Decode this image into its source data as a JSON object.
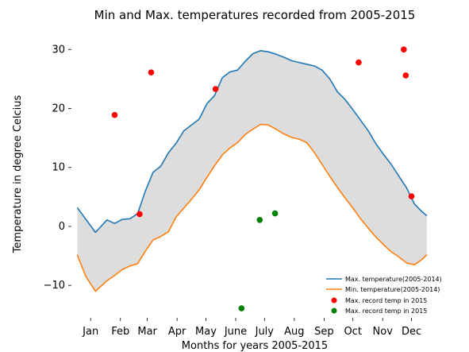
{
  "chart_data": {
    "type": "line",
    "title": "Min and Max. temperatures recorded from 2005-2015",
    "xlabel": "Months for years 2005-2015",
    "ylabel": "Temperature in degree Celcius",
    "xlim": [
      -5,
      375
    ],
    "ylim": [
      -15.5,
      33
    ],
    "months": [
      {
        "label": "Jan",
        "day": 15
      },
      {
        "label": "Feb",
        "day": 46
      },
      {
        "label": "Mar",
        "day": 74
      },
      {
        "label": "Apr",
        "day": 105
      },
      {
        "label": "May",
        "day": 135
      },
      {
        "label": "June",
        "day": 166
      },
      {
        "label": "July",
        "day": 196
      },
      {
        "label": "Aug",
        "day": 227
      },
      {
        "label": "Sep",
        "day": 258
      },
      {
        "label": "Oct",
        "day": 288
      },
      {
        "label": "Nov",
        "day": 319
      },
      {
        "label": "Dec",
        "day": 349
      }
    ],
    "yticks": [
      -10,
      0,
      10,
      20,
      30
    ],
    "series": [
      {
        "name": "Max. temperature(2005-2014)",
        "color": "#1f77b4",
        "x": [
          1,
          10,
          20,
          32,
          40,
          48,
          56,
          64,
          72,
          80,
          88,
          96,
          104,
          112,
          120,
          128,
          136,
          144,
          152,
          160,
          168,
          176,
          184,
          192,
          200,
          208,
          216,
          224,
          232,
          240,
          248,
          256,
          264,
          272,
          280,
          288,
          296,
          304,
          312,
          320,
          328,
          336,
          344,
          352,
          360,
          365
        ],
        "y": [
          3.2,
          1.2,
          -1.0,
          1.1,
          0.5,
          1.2,
          1.3,
          2.2,
          6.0,
          9.2,
          10.2,
          12.5,
          14.1,
          16.2,
          17.2,
          18.2,
          20.8,
          22.2,
          25.2,
          26.2,
          26.5,
          28.0,
          29.3,
          29.8,
          29.6,
          29.2,
          28.7,
          28.1,
          27.8,
          27.5,
          27.2,
          26.5,
          25.0,
          22.8,
          21.5,
          19.8,
          18.0,
          16.2,
          14.0,
          12.2,
          10.5,
          8.5,
          6.5,
          3.8,
          2.5,
          1.8
        ]
      },
      {
        "name": "Min. temperature(2005-2014)",
        "color": "#ff7f0e",
        "x": [
          1,
          10,
          20,
          32,
          40,
          48,
          56,
          64,
          72,
          80,
          88,
          96,
          104,
          112,
          120,
          128,
          136,
          144,
          152,
          160,
          168,
          176,
          184,
          192,
          200,
          208,
          216,
          224,
          232,
          240,
          248,
          256,
          264,
          272,
          280,
          288,
          296,
          304,
          312,
          320,
          328,
          336,
          344,
          352,
          360,
          365
        ],
        "y": [
          -4.8,
          -8.5,
          -11.0,
          -9.2,
          -8.3,
          -7.3,
          -6.7,
          -6.3,
          -4.2,
          -2.3,
          -1.7,
          -0.9,
          1.6,
          3.1,
          4.6,
          6.2,
          8.3,
          10.3,
          12.1,
          13.3,
          14.2,
          15.6,
          16.5,
          17.3,
          17.2,
          16.5,
          15.7,
          15.1,
          14.8,
          14.2,
          12.5,
          10.5,
          8.5,
          6.6,
          4.8,
          3.1,
          1.3,
          -0.3,
          -1.8,
          -3.1,
          -4.3,
          -5.2,
          -6.2,
          -6.5,
          -5.6,
          -4.8
        ]
      }
    ],
    "scatter": [
      {
        "name": "Max. record temp in 2015",
        "color": "#ff0000",
        "points": [
          [
            40,
            18.9
          ],
          [
            66,
            2.1
          ],
          [
            78,
            26.1
          ],
          [
            145,
            23.3
          ],
          [
            294,
            27.8
          ],
          [
            341,
            30.0
          ],
          [
            343,
            25.6
          ],
          [
            349,
            5.1
          ]
        ]
      },
      {
        "name": "Max. record temp in 2015",
        "color": "#008000",
        "points": [
          [
            172,
            -13.9
          ],
          [
            191,
            1.1
          ],
          [
            207,
            2.2
          ]
        ]
      }
    ],
    "legend_position": "lower-right",
    "fill_between": true,
    "grid": false
  }
}
